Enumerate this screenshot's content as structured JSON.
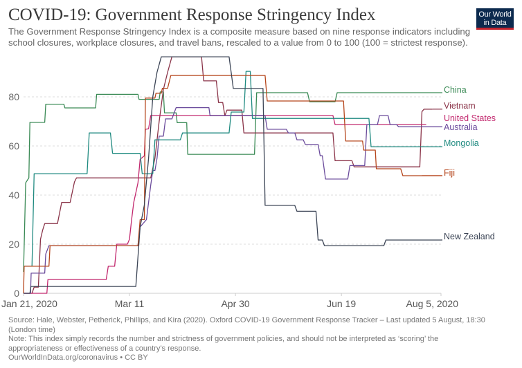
{
  "header": {
    "title": "COVID-19: Government Response Stringency Index",
    "subtitle": "The Government Response Stringency Index is a composite measure based on nine response indicators including school closures, workplace closures, and travel bans, rescaled to a value from 0 to 100 (100 = strictest response).",
    "logo": "Our World in Data"
  },
  "footer": {
    "source": "Source: Hale, Webster, Petherick, Phillips, and Kira (2020). Oxford COVID-19 Government Response Tracker – Last updated 5 August, 18:30 (London time)",
    "note": "Note: This index simply records the number and strictness of government policies, and should not be interpreted as ‘scoring’ the appropriateness or effectiveness of a country’s response.",
    "url": "OurWorldInData.org/coronavirus • CC BY"
  },
  "chart_data": {
    "type": "line",
    "title": "COVID-19: Government Response Stringency Index",
    "xlabel": "",
    "ylabel": "",
    "x_unit": "days since Jan 21, 2020",
    "xlim": [
      0,
      197
    ],
    "ylim": [
      0,
      100
    ],
    "x_ticks": [
      {
        "day": 0,
        "label": "Jan 21, 2020"
      },
      {
        "day": 50,
        "label": "Mar 11"
      },
      {
        "day": 100,
        "label": "Apr 30"
      },
      {
        "day": 150,
        "label": "Jun 19"
      },
      {
        "day": 197,
        "label": "Aug 5, 2020"
      }
    ],
    "y_ticks": [
      0,
      20,
      40,
      60,
      80
    ],
    "grid": "horizontal dashed",
    "legend": "right, inline labels",
    "series": [
      {
        "name": "China",
        "color": "#3a8a55",
        "points": [
          [
            0,
            8.7
          ],
          [
            1,
            45
          ],
          [
            2.5,
            47
          ],
          [
            3,
            69.6
          ],
          [
            10,
            69.6
          ],
          [
            10.5,
            77
          ],
          [
            19,
            77
          ],
          [
            19.5,
            75.5
          ],
          [
            34,
            75.5
          ],
          [
            34.5,
            81
          ],
          [
            54,
            81
          ],
          [
            54.5,
            79
          ],
          [
            64,
            79
          ],
          [
            64.5,
            82
          ],
          [
            66,
            82
          ],
          [
            66.5,
            73.5
          ],
          [
            72,
            73.5
          ],
          [
            72.5,
            69.5
          ],
          [
            77,
            69.5
          ],
          [
            77.5,
            56.6
          ],
          [
            109,
            56.6
          ],
          [
            110,
            81.7
          ],
          [
            134,
            81.7
          ],
          [
            135,
            78
          ],
          [
            147,
            78
          ],
          [
            148,
            81.7
          ],
          [
            188,
            81.7
          ]
        ]
      },
      {
        "name": "Vietnam",
        "color": "#8a3348",
        "points": [
          [
            0,
            0
          ],
          [
            4,
            0
          ],
          [
            5,
            2.5
          ],
          [
            7,
            2.5
          ],
          [
            8,
            22
          ],
          [
            9,
            25.6
          ],
          [
            10,
            28.4
          ],
          [
            16,
            28.4
          ],
          [
            18,
            37
          ],
          [
            22,
            37
          ],
          [
            24,
            45.3
          ],
          [
            25,
            47
          ],
          [
            60,
            47
          ],
          [
            62,
            55
          ],
          [
            64,
            70
          ],
          [
            66,
            83
          ],
          [
            68,
            90
          ],
          [
            70,
            96.3
          ],
          [
            84,
            96.3
          ],
          [
            85,
            86.5
          ],
          [
            91,
            86.5
          ],
          [
            92,
            77.7
          ],
          [
            94,
            77.7
          ],
          [
            95,
            72.3
          ],
          [
            96,
            74.6
          ],
          [
            103,
            74.6
          ],
          [
            104,
            65.3
          ],
          [
            146,
            65.3
          ],
          [
            147,
            54
          ],
          [
            155,
            54
          ],
          [
            156,
            51.5
          ],
          [
            187,
            51.5
          ],
          [
            188,
            74
          ],
          [
            189,
            75
          ],
          [
            193,
            75
          ]
        ]
      },
      {
        "name": "United States",
        "color": "#c2286e",
        "points": [
          [
            0,
            0
          ],
          [
            11,
            0
          ],
          [
            11.5,
            5.6
          ],
          [
            39,
            5.6
          ],
          [
            40,
            11
          ],
          [
            43,
            11
          ],
          [
            44,
            20
          ],
          [
            49,
            20
          ],
          [
            50,
            22
          ],
          [
            51,
            30
          ],
          [
            52,
            37
          ],
          [
            54,
            45
          ],
          [
            55,
            54.6
          ],
          [
            57,
            56
          ],
          [
            57.5,
            66.8
          ],
          [
            59,
            67
          ],
          [
            60,
            72.4
          ],
          [
            146,
            72.4
          ],
          [
            147,
            68.7
          ],
          [
            190,
            68.7
          ]
        ]
      },
      {
        "name": "Australia",
        "color": "#6a4a9b",
        "points": [
          [
            0,
            0
          ],
          [
            3.3,
            0
          ],
          [
            3.6,
            8.2
          ],
          [
            10,
            8.2
          ],
          [
            10.5,
            16
          ],
          [
            12,
            19.4
          ],
          [
            54,
            19.4
          ],
          [
            55,
            27
          ],
          [
            58,
            30
          ],
          [
            59,
            37
          ],
          [
            60,
            44
          ],
          [
            61,
            50
          ],
          [
            62,
            50
          ],
          [
            63,
            55
          ],
          [
            64,
            64
          ],
          [
            66,
            64
          ],
          [
            67,
            71
          ],
          [
            70,
            71
          ],
          [
            72,
            75.6
          ],
          [
            87.5,
            75.6
          ],
          [
            88,
            72.3
          ],
          [
            114,
            72.3
          ],
          [
            115,
            66.8
          ],
          [
            124,
            66.8
          ],
          [
            125,
            65.3
          ],
          [
            128,
            65.3
          ],
          [
            129,
            62.5
          ],
          [
            132,
            62.5
          ],
          [
            133,
            60.6
          ],
          [
            139,
            60.6
          ],
          [
            140,
            56
          ],
          [
            141,
            56
          ],
          [
            142.5,
            46.5
          ],
          [
            153,
            46.5
          ],
          [
            154,
            52
          ],
          [
            161,
            52
          ],
          [
            162,
            68.7
          ],
          [
            167,
            68.7
          ],
          [
            168,
            72.4
          ],
          [
            172,
            72.4
          ],
          [
            173,
            68.7
          ],
          [
            176,
            68.7
          ],
          [
            177,
            67.8
          ],
          [
            188,
            67.8
          ]
        ]
      },
      {
        "name": "Mongolia",
        "color": "#1f8a80",
        "points": [
          [
            0,
            11
          ],
          [
            4,
            11
          ],
          [
            5,
            48.7
          ],
          [
            30,
            48.7
          ],
          [
            31,
            65.3
          ],
          [
            41,
            65.3
          ],
          [
            42,
            57
          ],
          [
            55,
            57
          ],
          [
            56,
            48.7
          ],
          [
            61,
            48.7
          ],
          [
            62,
            62.5
          ],
          [
            74,
            62.5
          ],
          [
            75,
            65.3
          ],
          [
            97,
            65.3
          ],
          [
            98,
            73.8
          ],
          [
            104,
            73.8
          ],
          [
            105,
            90.4
          ],
          [
            107,
            90.4
          ],
          [
            108,
            71.2
          ],
          [
            163,
            71.2
          ],
          [
            164,
            59.7
          ],
          [
            196,
            59.7
          ]
        ]
      },
      {
        "name": "Fiji",
        "color": "#b5451b",
        "points": [
          [
            0,
            0
          ],
          [
            0.3,
            11
          ],
          [
            12,
            11
          ],
          [
            12.5,
            19.4
          ],
          [
            54,
            19.4
          ],
          [
            55,
            30
          ],
          [
            57,
            30
          ],
          [
            57.5,
            79.5
          ],
          [
            62,
            79.5
          ],
          [
            62.5,
            81.5
          ],
          [
            65,
            81.5
          ],
          [
            65.5,
            83.5
          ],
          [
            68,
            83.5
          ],
          [
            69.5,
            88.7
          ],
          [
            114,
            88.7
          ],
          [
            115,
            78.3
          ],
          [
            151,
            78.3
          ],
          [
            152,
            62
          ],
          [
            160,
            62
          ],
          [
            160.5,
            58.3
          ],
          [
            166,
            58.3
          ],
          [
            166.5,
            50.7
          ],
          [
            178,
            50.7
          ],
          [
            179,
            47.9
          ],
          [
            188,
            47.9
          ]
        ]
      },
      {
        "name": "New Zealand",
        "color": "#3b4455",
        "points": [
          [
            0,
            0
          ],
          [
            3,
            0
          ],
          [
            3.5,
            2.8
          ],
          [
            53,
            2.8
          ],
          [
            55,
            27
          ],
          [
            57,
            36
          ],
          [
            59,
            55
          ],
          [
            61,
            80
          ],
          [
            63,
            90
          ],
          [
            65,
            96.3
          ],
          [
            97,
            96.3
          ],
          [
            99,
            83.4
          ],
          [
            113,
            83.4
          ],
          [
            114,
            35.8
          ],
          [
            128,
            35.8
          ],
          [
            129,
            33.4
          ],
          [
            138,
            33.4
          ],
          [
            139,
            21.7
          ],
          [
            141,
            21.7
          ],
          [
            142,
            19.4
          ],
          [
            170,
            19.4
          ],
          [
            171,
            21.7
          ],
          [
            197,
            21.7
          ]
        ]
      }
    ]
  }
}
